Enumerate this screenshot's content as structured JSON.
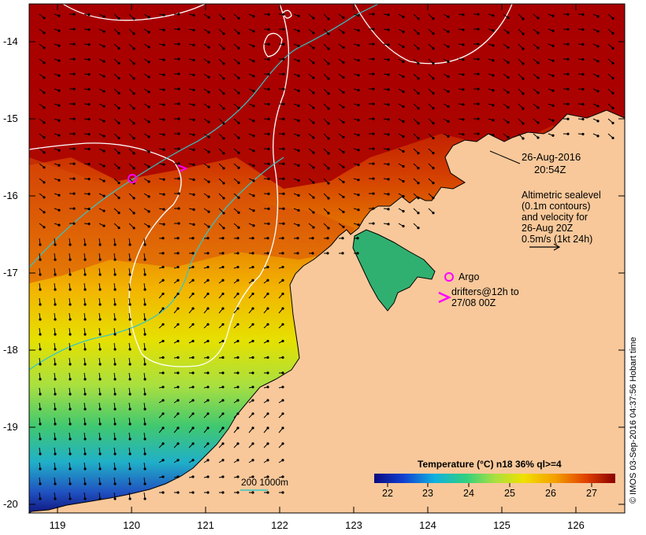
{
  "map": {
    "y_ticks": [
      "-14",
      "-15",
      "-16",
      "-17",
      "-18",
      "-19",
      "-20"
    ],
    "x_ticks": [
      "119",
      "120",
      "121",
      "122",
      "123",
      "124",
      "125",
      "126"
    ],
    "colors": {
      "land": "#f8c89a",
      "sea_hot": "#a50000",
      "sea_warm": "#e05a00",
      "sea_mid": "#f5b800",
      "sea_cool": "#c8e83a",
      "sea_cold": "#34c07a",
      "sea_coldest": "#1a30b0",
      "sealevel_contour": "#ffffff",
      "isobath": "#30c8c8",
      "argo": "#ff00ff"
    }
  },
  "annotations": {
    "date_line1": "26-Aug-2016",
    "date_line2": "20:54Z",
    "altimetry": [
      "Altimetric sealevel",
      "(0.1m contours)",
      "and velocity for",
      "26-Aug 20Z",
      "0.5m/s (1kt 24h)"
    ],
    "argo_label": "Argo",
    "drifters_line1": "drifters@12h to",
    "drifters_line2": "27/08 00Z",
    "isobath_label": "200  1000m",
    "credit": "© IMOS 03-Sep-2016 04:37:56 Hobart time"
  },
  "colorbar": {
    "title": "Temperature (°C) n18 36% ql>=4",
    "labels": [
      "22",
      "23",
      "24",
      "25",
      "26",
      "27"
    ]
  }
}
